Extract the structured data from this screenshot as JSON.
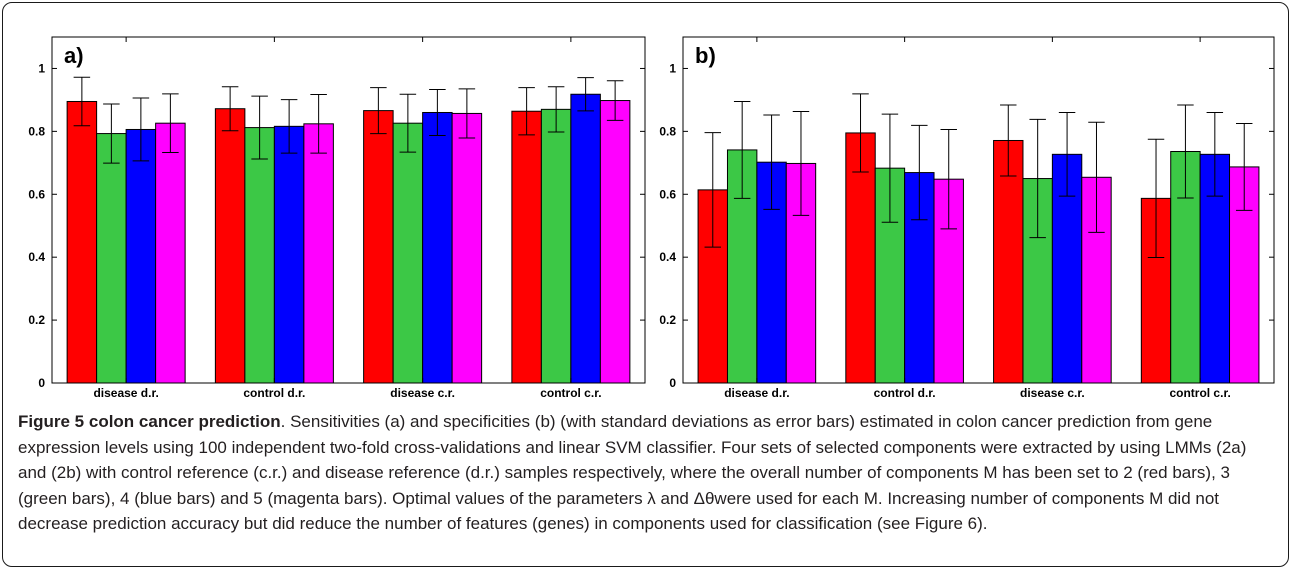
{
  "chart_data": [
    {
      "type": "bar",
      "panel_label": "a)",
      "categories": [
        "disease d.r.",
        "control d.r.",
        "disease c.r.",
        "control c.r."
      ],
      "ylim": [
        0,
        1.1
      ],
      "yticks": [
        0,
        0.2,
        0.4,
        0.6,
        0.8,
        1
      ],
      "ytick_labels": [
        "0",
        "0.2",
        "0.4",
        "0.6",
        "0.8",
        "1"
      ],
      "grid": false,
      "error_bars": true,
      "series": [
        {
          "values": [
            0.895,
            0.872,
            0.866,
            0.864
          ],
          "errors": [
            0.077,
            0.07,
            0.073,
            0.075
          ],
          "color": "#ff0000"
        },
        {
          "values": [
            0.793,
            0.812,
            0.826,
            0.87
          ],
          "errors": [
            0.094,
            0.1,
            0.092,
            0.072
          ],
          "color": "#3cc846"
        },
        {
          "values": [
            0.806,
            0.816,
            0.86,
            0.918
          ],
          "errors": [
            0.1,
            0.085,
            0.073,
            0.053
          ],
          "color": "#0000ff"
        },
        {
          "values": [
            0.826,
            0.824,
            0.857,
            0.898
          ],
          "errors": [
            0.093,
            0.093,
            0.078,
            0.063
          ],
          "color": "#ff00ff"
        }
      ]
    },
    {
      "type": "bar",
      "panel_label": "b)",
      "categories": [
        "disease d.r.",
        "control d.r.",
        "disease c.r.",
        "control c.r."
      ],
      "ylim": [
        0,
        1.1
      ],
      "yticks": [
        0,
        0.2,
        0.4,
        0.6,
        0.8,
        1
      ],
      "ytick_labels": [
        "0",
        "0.2",
        "0.4",
        "0.6",
        "0.8",
        "1"
      ],
      "grid": false,
      "error_bars": true,
      "series": [
        {
          "values": [
            0.614,
            0.795,
            0.771,
            0.587
          ],
          "errors": [
            0.182,
            0.124,
            0.113,
            0.188
          ],
          "color": "#ff0000"
        },
        {
          "values": [
            0.741,
            0.683,
            0.65,
            0.736
          ],
          "errors": [
            0.154,
            0.172,
            0.188,
            0.148
          ],
          "color": "#3cc846"
        },
        {
          "values": [
            0.702,
            0.669,
            0.727,
            0.727
          ],
          "errors": [
            0.15,
            0.15,
            0.133,
            0.133
          ],
          "color": "#0000ff"
        },
        {
          "values": [
            0.698,
            0.648,
            0.654,
            0.687
          ],
          "errors": [
            0.165,
            0.158,
            0.175,
            0.138
          ],
          "color": "#ff00ff"
        }
      ]
    }
  ],
  "caption": {
    "figure_label": "Figure 5",
    "figure_title": "colon cancer prediction",
    "text": ". Sensitivities (a) and specificities (b) (with standard deviations as error bars) estimated in colon cancer prediction from gene expression levels using 100 independent two-fold cross-validations and linear SVM classifier. Four sets of selected components were extracted by using LMMs (2a) and (2b) with control reference (c.r.) and disease reference (d.r.) samples respectively, where the overall number of components M has been set to 2 (red bars), 3 (green bars), 4 (blue bars) and 5 (magenta bars). Optimal values of the parameters λ and Δθwere used for each M. Increasing number of components M did not decrease prediction accuracy but did reduce the number of features (genes) in components used for classification (see Figure 6)."
  }
}
